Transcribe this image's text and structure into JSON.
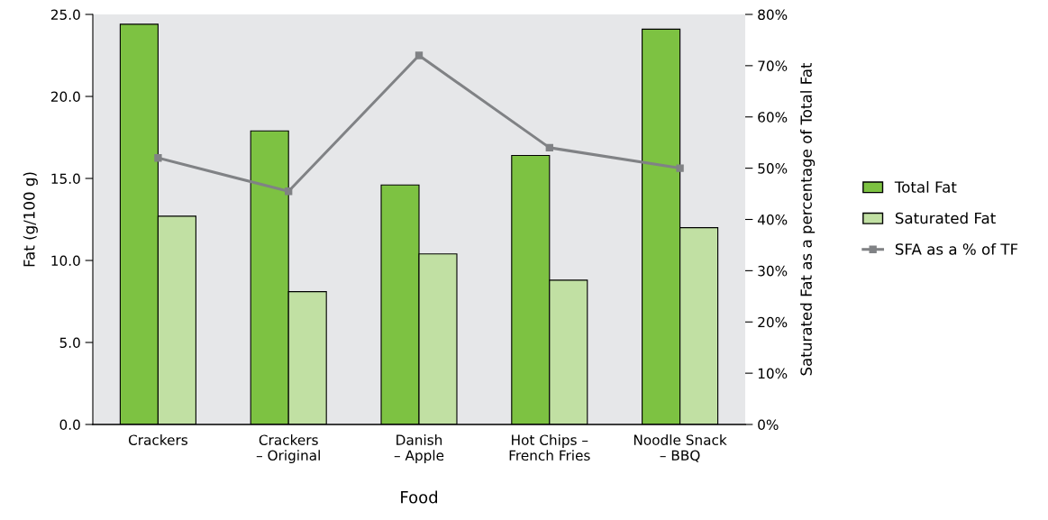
{
  "chart_data": {
    "type": "bar",
    "xlabel": "Food",
    "ylabel": "Fat (g/100 g)",
    "y2label": "Saturated Fat as a percentage of Total Fat",
    "categories": [
      "Crackers",
      "Crackers\n– Original",
      "Danish\n– Apple",
      "Hot Chips –\nFrench Fries",
      "Noodle Snack\n– BBQ"
    ],
    "series": [
      {
        "name": "Total Fat",
        "color": "#7dc242",
        "values": [
          24.4,
          17.9,
          14.6,
          16.4,
          24.1
        ]
      },
      {
        "name": "Saturated Fat",
        "color": "#c1e0a3",
        "values": [
          12.7,
          8.1,
          10.4,
          8.8,
          12.0
        ]
      },
      {
        "name": "SFA as a % of TF",
        "type": "line",
        "axis": "y2",
        "color": "#808285",
        "marker": "square",
        "values": [
          52,
          45.5,
          72,
          54,
          50
        ]
      }
    ],
    "ylim": [
      0,
      25
    ],
    "yticks": [
      {
        "value": 0,
        "label": "0.0"
      },
      {
        "value": 5,
        "label": "5.0"
      },
      {
        "value": 10,
        "label": "10.0"
      },
      {
        "value": 15,
        "label": "15.0"
      },
      {
        "value": 20,
        "label": "20.0"
      },
      {
        "value": 25,
        "label": "25.0"
      }
    ],
    "y2lim": [
      0,
      80
    ],
    "y2ticks": [
      {
        "value": 0,
        "label": "0%"
      },
      {
        "value": 10,
        "label": "10%"
      },
      {
        "value": 20,
        "label": "20%"
      },
      {
        "value": 30,
        "label": "30%"
      },
      {
        "value": 40,
        "label": "40%"
      },
      {
        "value": 50,
        "label": "50%"
      },
      {
        "value": 60,
        "label": "60%"
      },
      {
        "value": 70,
        "label": "70%"
      },
      {
        "value": 80,
        "label": "80%"
      }
    ],
    "grid": false,
    "legend": "right"
  }
}
